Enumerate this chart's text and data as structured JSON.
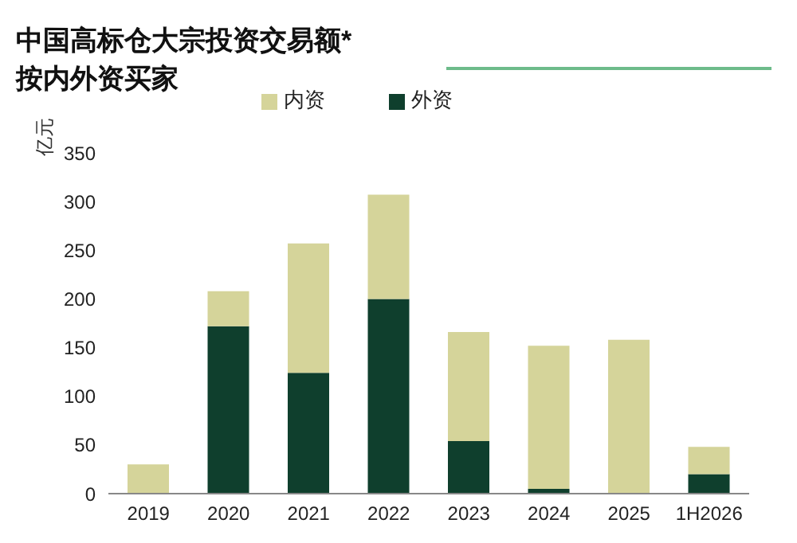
{
  "chart_data": {
    "type": "bar",
    "title": "中国高标仓大宗投资交易额*",
    "subtitle": "按内外资买家",
    "ylabel": "亿元",
    "categories": [
      "2019",
      "2020",
      "2021",
      "2022",
      "2023",
      "2024",
      "2025",
      "1H2026"
    ],
    "series": [
      {
        "name": "外资",
        "color": "#0f3f2d",
        "values": [
          0,
          172,
          124,
          200,
          54,
          5,
          0,
          20
        ]
      },
      {
        "name": "内资",
        "color": "#d5d49a",
        "values": [
          30,
          36,
          133,
          107,
          112,
          147,
          158,
          28
        ]
      }
    ],
    "stacked": true,
    "ylim": [
      0,
      350
    ],
    "yticks": [
      0,
      50,
      100,
      150,
      200,
      250,
      300,
      350
    ],
    "grid": false,
    "legend": "top"
  }
}
